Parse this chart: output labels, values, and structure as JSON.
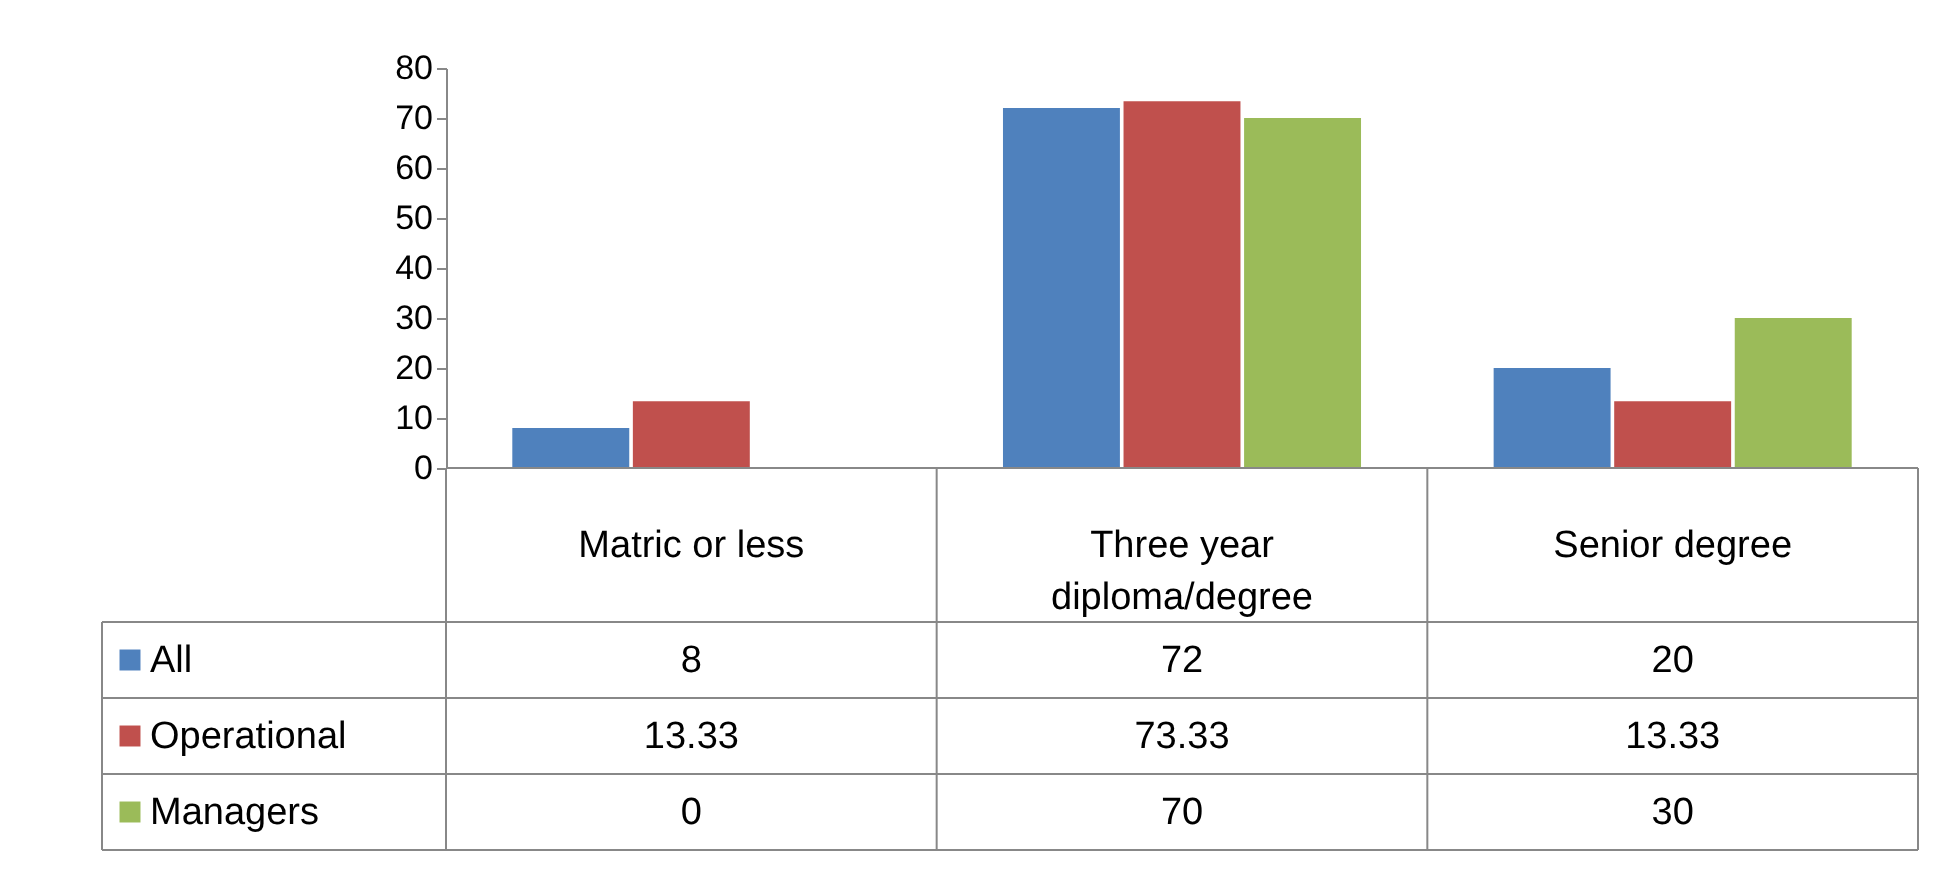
{
  "chart_data": {
    "type": "bar",
    "categories": [
      "Matric or less",
      "Three year diploma/degree",
      "Senior degree"
    ],
    "series": [
      {
        "name": "All",
        "color": "#4f81bd",
        "values": [
          8,
          72,
          20
        ]
      },
      {
        "name": "Operational",
        "color": "#c0504d",
        "values": [
          13.33,
          73.33,
          13.33
        ]
      },
      {
        "name": "Managers",
        "color": "#9bbb59",
        "values": [
          0,
          70,
          30
        ]
      }
    ],
    "ylim": [
      0,
      80
    ],
    "yticks": [
      0,
      10,
      20,
      30,
      40,
      50,
      60,
      70,
      80
    ],
    "data_labels": true,
    "legend": "bottom left"
  }
}
